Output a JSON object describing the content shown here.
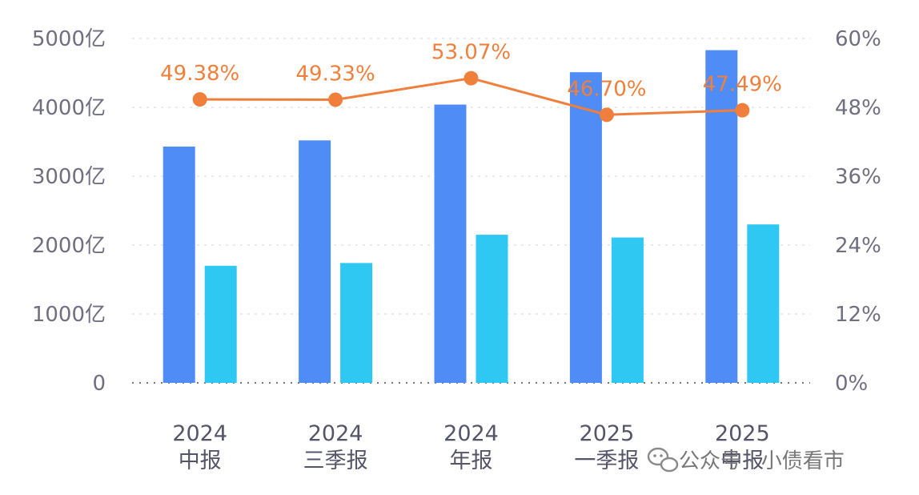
{
  "chart_data": {
    "type": "bar",
    "categories": [
      {
        "year": "2024",
        "period": "中报"
      },
      {
        "year": "2024",
        "period": "三季报"
      },
      {
        "year": "2024",
        "period": "年报"
      },
      {
        "year": "2025",
        "period": "一季报"
      },
      {
        "year": "2025",
        "period": "中报"
      }
    ],
    "series": [
      {
        "type": "bar",
        "axis": "left",
        "color": "#4f8cf5",
        "values": [
          3430,
          3520,
          4040,
          4510,
          4830
        ]
      },
      {
        "type": "bar",
        "axis": "left",
        "color": "#2ec8f3",
        "values": [
          1700,
          1740,
          2150,
          2110,
          2300
        ]
      },
      {
        "type": "line",
        "axis": "right",
        "color": "#f07f3c",
        "values": [
          49.38,
          49.33,
          53.07,
          46.7,
          47.49
        ],
        "labels": [
          "49.38%",
          "49.33%",
          "53.07%",
          "46.70%",
          "47.49%"
        ]
      }
    ],
    "left_axis": {
      "min": 0,
      "max": 5000,
      "ticks": [
        "0",
        "1000亿",
        "2000亿",
        "3000亿",
        "4000亿",
        "5000亿"
      ]
    },
    "right_axis": {
      "min": 0,
      "max": 60,
      "ticks": [
        "0%",
        "12%",
        "24%",
        "36%",
        "48%",
        "60%"
      ]
    },
    "grid": true,
    "legend": "none"
  },
  "watermark": {
    "text": "公众号 · 小债看市",
    "icon": "wechat-icon"
  }
}
